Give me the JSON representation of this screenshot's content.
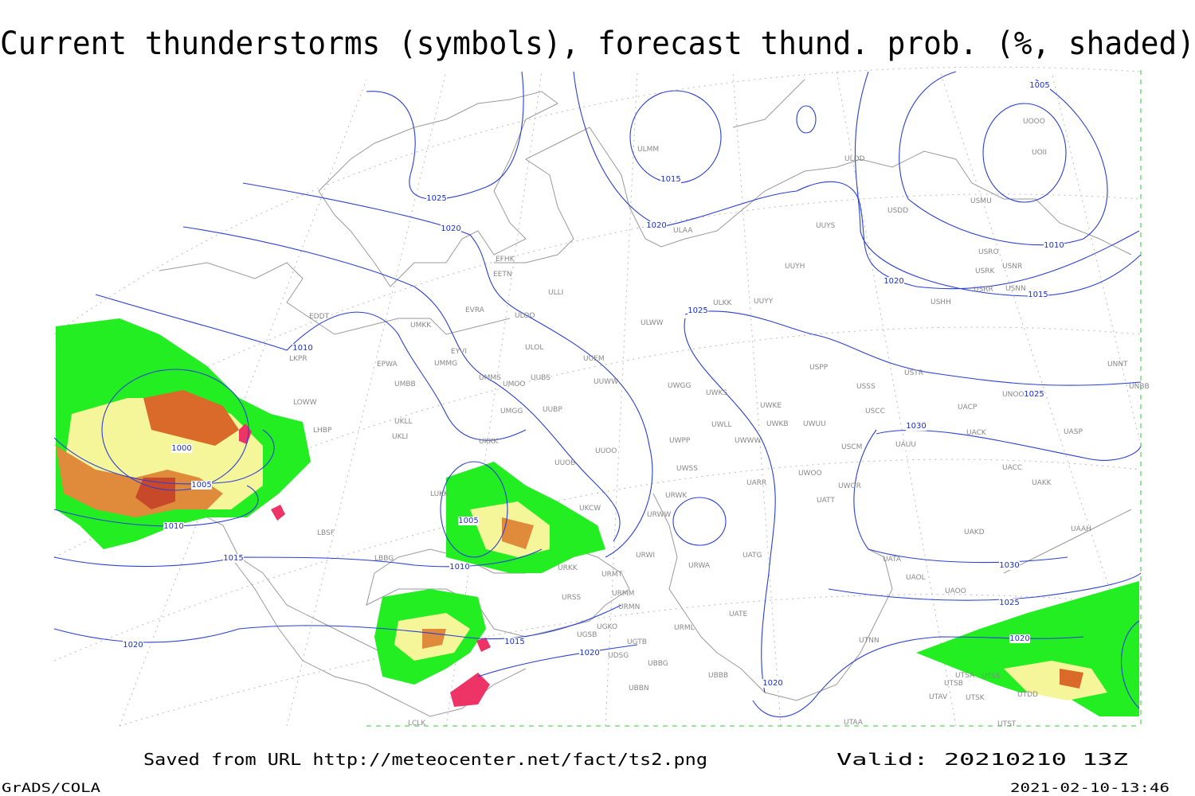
{
  "title": "Current thunderstorms (symbols), forecast thund. prob. (%, shaded)",
  "saved_from": "Saved from URL http://meteocenter.net/fact/ts2.png",
  "valid": "Valid: 20210210 13Z",
  "software": "GrADS/COLA",
  "timestamp": "2021-02-10-13:46",
  "isobar_labels": [
    1005,
    1025,
    1015,
    1020,
    1020,
    1010,
    1020,
    1015,
    1025,
    1010,
    1025,
    1030,
    1000,
    1005,
    1005,
    1010,
    1010,
    1015,
    1030,
    1025,
    1020,
    1015,
    1020,
    1020,
    1020
  ],
  "stations": [
    "ULMM",
    "ULDD",
    "UOOO",
    "UOII",
    "USMU",
    "USDD",
    "ULAA",
    "UUYS",
    "EFHK",
    "EETN",
    "USRO",
    "USNR",
    "USRK",
    "UUYH",
    "USRR",
    "USNN",
    "ULLI",
    "USHH",
    "ULKK",
    "UUYY",
    "EVRA",
    "UMKK",
    "ULOO",
    "EDDT",
    "ULWW",
    "ULOL",
    "EYVI",
    "LKPR",
    "UUEM",
    "UMMG",
    "EPWA",
    "USPP",
    "USTR",
    "UNNT",
    "UMMS",
    "UMOO",
    "UUBS",
    "UUWW",
    "UWGG",
    "UWKS",
    "USSS",
    "UNBB",
    "UMBB",
    "UNOO",
    "LOWW",
    "UKLL",
    "UMGG",
    "UUBP",
    "UWKE",
    "USCC",
    "UACP",
    "UWKB",
    "UWUU",
    "UWLL",
    "LHBP",
    "UKLI",
    "UKKK",
    "UWWW",
    "UWPP",
    "UAUU",
    "USCM",
    "UACK",
    "UASP",
    "UUOO",
    "UUOB",
    "UWSS",
    "UACC",
    "UWOO",
    "UARR",
    "UWOR",
    "UAKK",
    "LUKK",
    "URWK",
    "UATT",
    "UKCW",
    "URWW",
    "UAKD",
    "UAAH",
    "LBSF",
    "URWI",
    "UATG",
    "LBBG",
    "URKK",
    "UATA",
    "URMT",
    "URWA",
    "UAOL",
    "URMM",
    "UAOO",
    "URSS",
    "UATE",
    "URMN",
    "URML",
    "UGKO",
    "UGSB",
    "UGTB",
    "UTNN",
    "UDSG",
    "UBBG",
    "UBBB",
    "UTSA",
    "UTSS",
    "UTSB",
    "UTDD",
    "UTAV",
    "UTSK",
    "UTST",
    "UTAA",
    "LCLK",
    "UBBN"
  ]
}
